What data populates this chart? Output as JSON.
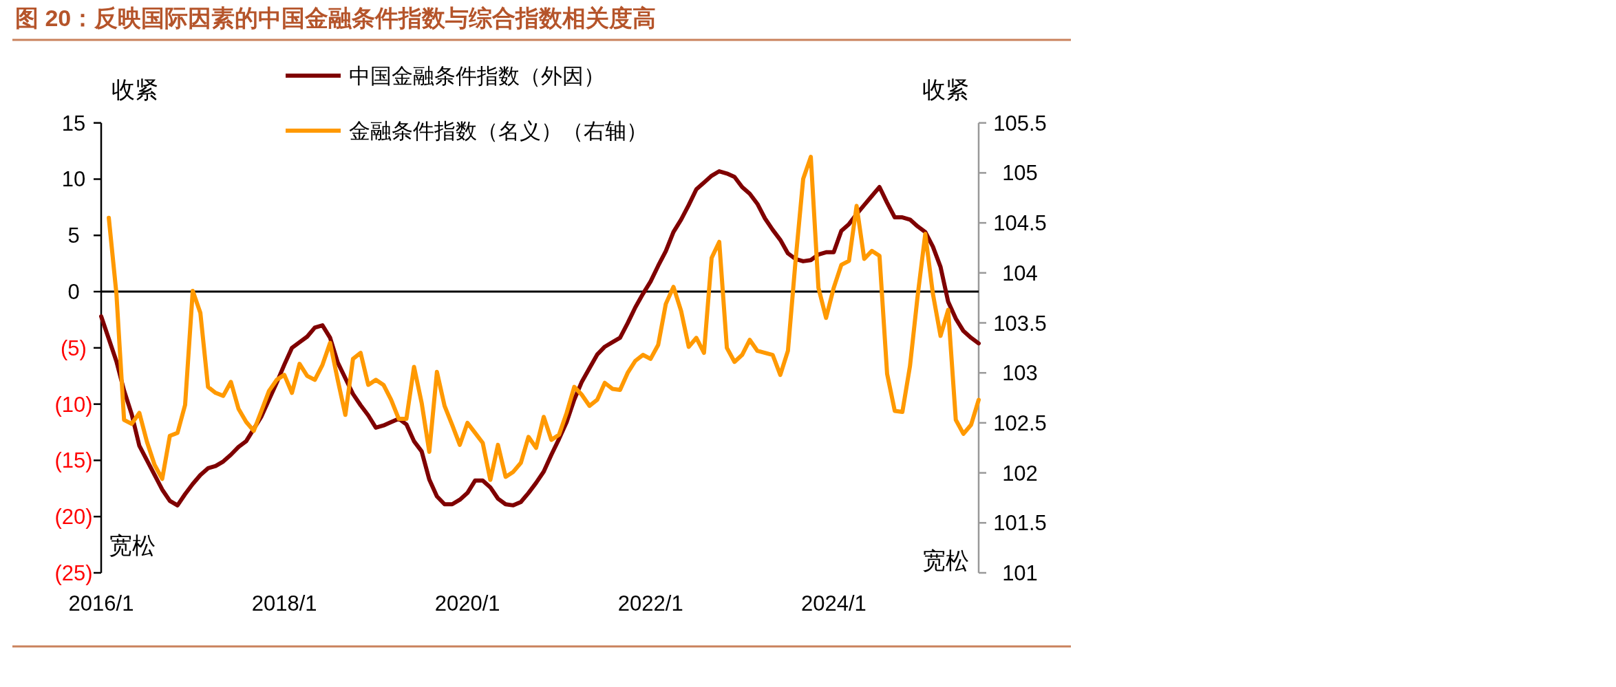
{
  "chart_data": {
    "type": "line",
    "title": "图 20：反映国际因素的中国金融条件指数与综合指数相关度高",
    "categories": [
      "2016/1",
      null,
      null,
      null,
      null,
      null,
      null,
      null,
      null,
      null,
      null,
      null,
      null,
      null,
      null,
      null,
      null,
      null,
      null,
      null,
      null,
      null,
      null,
      null,
      "2018/1",
      null,
      null,
      null,
      null,
      null,
      null,
      null,
      null,
      null,
      null,
      null,
      null,
      null,
      null,
      null,
      null,
      null,
      null,
      null,
      null,
      null,
      null,
      null,
      "2020/1",
      null,
      null,
      null,
      null,
      null,
      null,
      null,
      null,
      null,
      null,
      null,
      null,
      null,
      null,
      null,
      null,
      null,
      null,
      null,
      null,
      null,
      null,
      null,
      "2022/1",
      null,
      null,
      null,
      null,
      null,
      null,
      null,
      null,
      null,
      null,
      null,
      null,
      null,
      null,
      null,
      null,
      null,
      null,
      null,
      null,
      null,
      null,
      null,
      "2024/1",
      null,
      null,
      null,
      null,
      null,
      null,
      null,
      null,
      null,
      null,
      null,
      null,
      null,
      null,
      null,
      null,
      null,
      null,
      null
    ],
    "series": [
      {
        "name": "中国金融条件指数（外因）",
        "color": "#7f0000",
        "axis": "y",
        "values": [
          -2.2,
          -4.2,
          -6.2,
          -8.8,
          -10.9,
          -13.7,
          -15.0,
          -16.3,
          -17.6,
          -18.6,
          -19.0,
          -18.0,
          -17.1,
          -16.3,
          -15.7,
          -15.5,
          -15.1,
          -14.5,
          -13.8,
          -13.3,
          -12.2,
          -11.1,
          -9.6,
          -8.1,
          -6.5,
          -5.0,
          -4.5,
          -4.0,
          -3.2,
          -3.0,
          -4.1,
          -6.3,
          -7.7,
          -9.1,
          -10.1,
          -11.0,
          -12.1,
          -11.9,
          -11.6,
          -11.3,
          -11.8,
          -13.3,
          -14.2,
          -16.7,
          -18.2,
          -18.9,
          -18.9,
          -18.5,
          -17.9,
          -16.8,
          -16.8,
          -17.4,
          -18.4,
          -18.9,
          -19.0,
          -18.7,
          -17.9,
          -17.0,
          -16.0,
          -14.5,
          -13.1,
          -11.6,
          -9.6,
          -8.0,
          -6.8,
          -5.6,
          -4.9,
          -4.5,
          -4.1,
          -2.8,
          -1.4,
          -0.2,
          0.9,
          2.3,
          3.6,
          5.3,
          6.4,
          7.7,
          9.1,
          9.7,
          10.3,
          10.7,
          10.5,
          10.2,
          9.3,
          8.7,
          7.8,
          6.5,
          5.5,
          4.6,
          3.4,
          2.9,
          2.7,
          2.8,
          3.3,
          3.5,
          3.5,
          5.4,
          6.0,
          6.9,
          7.7,
          8.5,
          9.3,
          7.9,
          6.6,
          6.6,
          6.4,
          5.8,
          5.3,
          4.0,
          2.2,
          -0.9,
          -2.4,
          -3.5,
          -4.1,
          -4.6
        ]
      },
      {
        "name": "金融条件指数（名义）（右轴）",
        "color": "#ff9900",
        "axis": "y2",
        "values": [
          null,
          104.55,
          103.79,
          102.53,
          102.49,
          102.6,
          102.31,
          102.08,
          101.94,
          102.37,
          102.4,
          102.68,
          103.82,
          103.6,
          102.86,
          102.8,
          102.77,
          102.91,
          102.64,
          102.51,
          102.42,
          102.62,
          102.82,
          102.93,
          102.98,
          102.8,
          103.09,
          102.97,
          102.93,
          103.08,
          103.3,
          102.93,
          102.58,
          103.14,
          103.2,
          102.88,
          102.93,
          102.88,
          102.73,
          102.54,
          102.54,
          103.06,
          102.7,
          102.21,
          103.01,
          102.67,
          102.48,
          102.28,
          102.5,
          102.4,
          102.3,
          101.93,
          102.28,
          101.96,
          102.01,
          102.1,
          102.36,
          102.25,
          102.56,
          102.33,
          102.38,
          102.6,
          102.86,
          102.78,
          102.67,
          102.73,
          102.9,
          102.84,
          102.83,
          103.0,
          103.12,
          103.18,
          103.14,
          103.28,
          103.69,
          103.86,
          103.62,
          103.26,
          103.35,
          103.2,
          104.15,
          104.31,
          103.25,
          103.11,
          103.18,
          103.33,
          103.22,
          103.2,
          103.18,
          102.98,
          103.22,
          104.12,
          104.94,
          105.16,
          103.85,
          103.55,
          103.85,
          104.08,
          104.12,
          104.67,
          104.14,
          104.22,
          104.17,
          102.99,
          102.62,
          102.61,
          103.07,
          103.77,
          104.39,
          103.79,
          103.37,
          103.63,
          102.53,
          102.39,
          102.48,
          102.73
        ]
      }
    ],
    "ylim": [
      -25,
      15
    ],
    "yticks": [
      15,
      10,
      5,
      0,
      {
        "value": -5,
        "label": "(5)"
      },
      {
        "value": -10,
        "label": "(10)"
      },
      {
        "value": -15,
        "label": "(15)"
      },
      {
        "value": -20,
        "label": "(20)"
      },
      {
        "value": -25,
        "label": "(25)"
      }
    ],
    "y2lim": [
      101,
      105.5
    ],
    "y2ticks": [
      105.5,
      105,
      104.5,
      104,
      103.5,
      103,
      102.5,
      102,
      101.5,
      101
    ],
    "ref_lines": [
      {
        "axis": "y",
        "value": 0,
        "color": "#000000"
      }
    ],
    "annotations": [
      "收紧",
      "收紧",
      "宽松",
      "宽松"
    ],
    "legend": "top",
    "grid": false
  }
}
